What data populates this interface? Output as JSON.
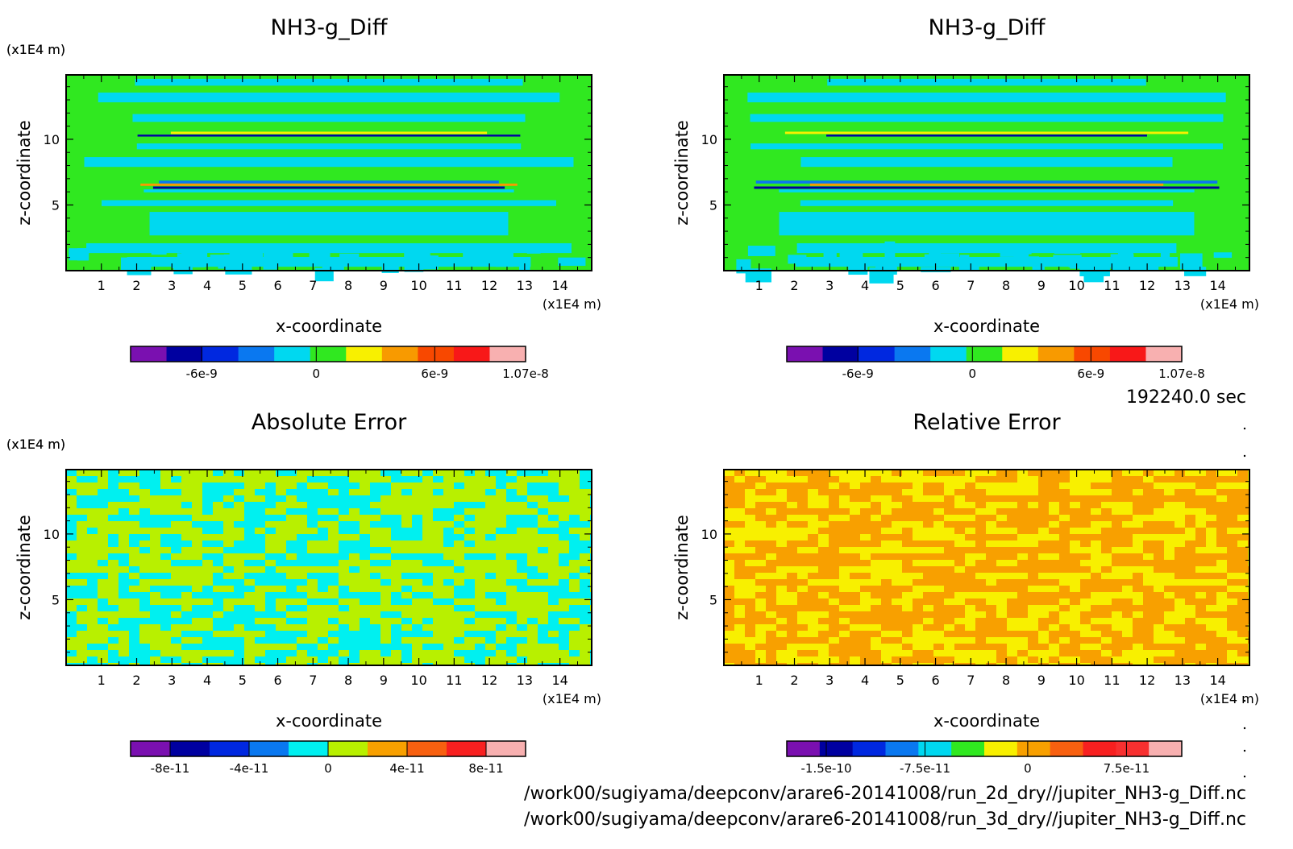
{
  "time_label": "192240.0 sec",
  "files": [
    "/work00/sugiyama/deepconv/arare6-20141008/run_2d_dry//jupiter_NH3-g_Diff.nc",
    "/work00/sugiyama/deepconv/arare6-20141008/run_3d_dry//jupiter_NH3-g_Diff.nc"
  ],
  "chart_data": [
    {
      "type": "heatmap",
      "title": "NH3-g_Diff",
      "xlabel": "x-coordinate",
      "ylabel": "z-coordinate",
      "x_unit": "(x1E4 m)",
      "y_unit": "(x1E4 m)",
      "xlim": [
        0,
        14.9
      ],
      "ylim": [
        0,
        14.9
      ],
      "xticks": [
        "1",
        "2",
        "3",
        "4",
        "5",
        "6",
        "7",
        "8",
        "9",
        "10",
        "11",
        "12",
        "13",
        "14"
      ],
      "yticks": [
        "5",
        "10"
      ],
      "pattern": "horizontal banded layers",
      "colorbar": {
        "colors": [
          "#7a10b0",
          "#0000a0",
          "#0028e0",
          "#0a78f0",
          "#00d8f0",
          "#30e820",
          "#f8f000",
          "#f89a00",
          "#f84800",
          "#f81818",
          "#f8b0b0"
        ],
        "tick_labels": [
          "-6e-9",
          "0",
          "6e-9",
          "1.07e-8"
        ]
      }
    },
    {
      "type": "heatmap",
      "title": "NH3-g_Diff",
      "xlabel": "x-coordinate",
      "ylabel": "z-coordinate",
      "x_unit": "(x1E4 m)",
      "y_unit": "(x1E4 m)",
      "xlim": [
        0,
        14.9
      ],
      "ylim": [
        0,
        14.9
      ],
      "xticks": [
        "1",
        "2",
        "3",
        "4",
        "5",
        "6",
        "7",
        "8",
        "9",
        "10",
        "11",
        "12",
        "13",
        "14"
      ],
      "yticks": [
        "5",
        "10"
      ],
      "pattern": "horizontal banded layers",
      "colorbar": {
        "colors": [
          "#7a10b0",
          "#0000a0",
          "#0028e0",
          "#0a78f0",
          "#00d8f0",
          "#30e820",
          "#f8f000",
          "#f89a00",
          "#f84800",
          "#f81818",
          "#f8b0b0"
        ],
        "tick_labels": [
          "-6e-9",
          "0",
          "6e-9",
          "1.07e-8"
        ]
      }
    },
    {
      "type": "heatmap",
      "title": "Absolute Error",
      "xlabel": "x-coordinate",
      "ylabel": "z-coordinate",
      "x_unit": "(x1E4 m)",
      "y_unit": "(x1E4 m)",
      "xlim": [
        0,
        14.9
      ],
      "ylim": [
        0,
        14.9
      ],
      "xticks": [
        "1",
        "2",
        "3",
        "4",
        "5",
        "6",
        "7",
        "8",
        "9",
        "10",
        "11",
        "12",
        "13",
        "14"
      ],
      "yticks": [
        "5",
        "10"
      ],
      "pattern": "noise mix of cyan and yellow-green",
      "colorbar": {
        "colors": [
          "#7a10b0",
          "#0000a0",
          "#0028e0",
          "#0a78f0",
          "#00f0f0",
          "#b8f000",
          "#f8a000",
          "#f86010",
          "#f82020",
          "#f8b0b0"
        ],
        "tick_labels": [
          "-8e-11",
          "-4e-11",
          "0",
          "4e-11",
          "8e-11"
        ]
      }
    },
    {
      "type": "heatmap",
      "title": "Relative Error",
      "xlabel": "x-coordinate",
      "ylabel": "z-coordinate",
      "x_unit": "(x1E4 m)",
      "y_unit": "(x1E4 m)",
      "xlim": [
        0,
        14.9
      ],
      "ylim": [
        0,
        14.9
      ],
      "xticks": [
        "1",
        "2",
        "3",
        "4",
        "5",
        "6",
        "7",
        "8",
        "9",
        "10",
        "11",
        "12",
        "13",
        "14"
      ],
      "yticks": [
        "5",
        "10"
      ],
      "pattern": "noise mix of yellow and orange",
      "colorbar": {
        "colors": [
          "#7a10b0",
          "#0000a0",
          "#0028e0",
          "#0a78f0",
          "#00d8f0",
          "#30e820",
          "#f8f000",
          "#f8a000",
          "#f86010",
          "#f82020",
          "#f83030",
          "#f8b0b0"
        ],
        "tick_labels": [
          "-1.5e-10",
          "-7.5e-11",
          "0",
          "7.5e-11"
        ]
      }
    }
  ]
}
